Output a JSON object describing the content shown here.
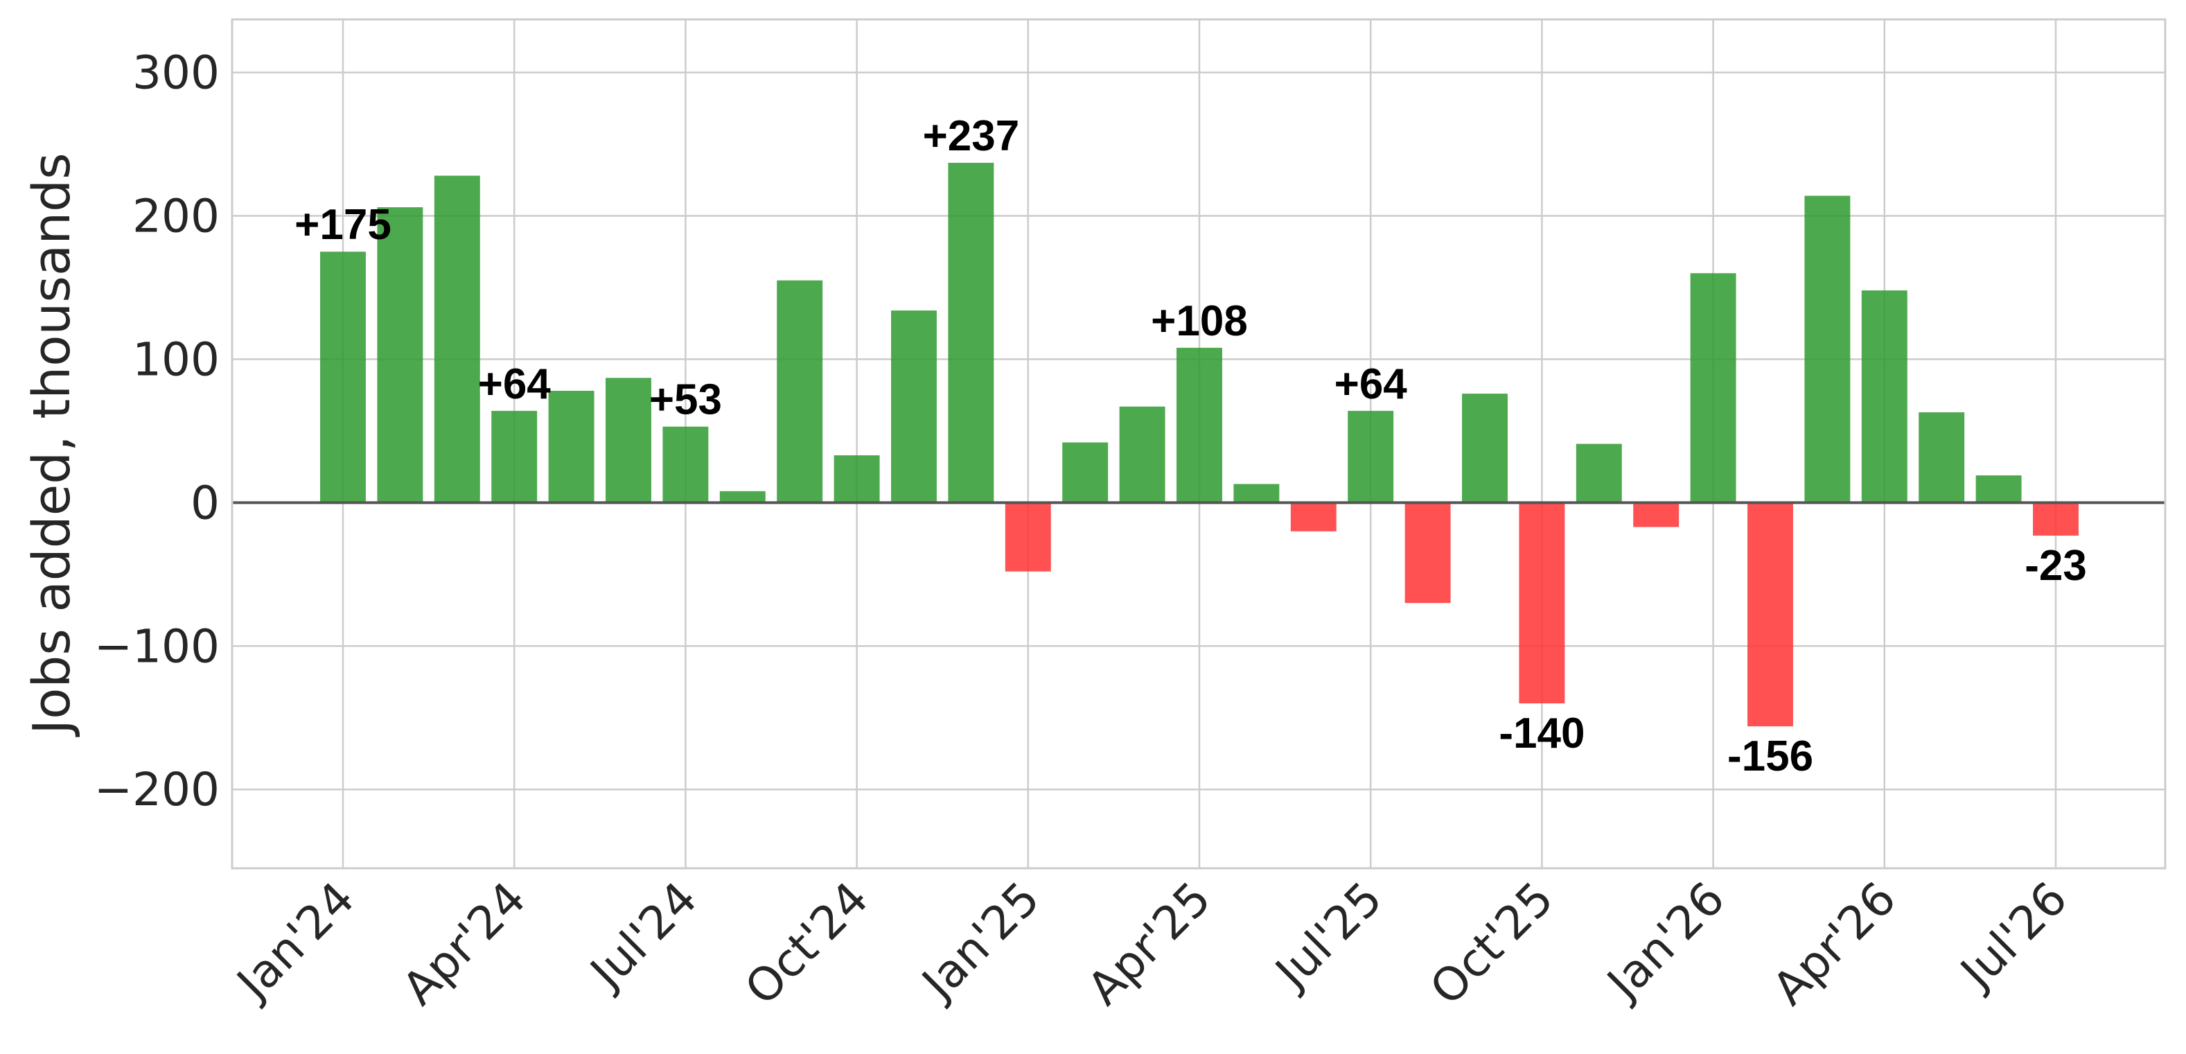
{
  "chart_data": {
    "type": "bar",
    "title": "",
    "xlabel": "",
    "ylabel": "Jobs added, thousands",
    "ylim": [
      -255,
      337
    ],
    "yticks": [
      -200,
      -100,
      0,
      100,
      200,
      300
    ],
    "ytick_labels": [
      "−200",
      "−100",
      "0",
      "100",
      "200",
      "300"
    ],
    "x": [
      "2024-01",
      "2024-02",
      "2024-03",
      "2024-04",
      "2024-05",
      "2024-06",
      "2024-07",
      "2024-08",
      "2024-09",
      "2024-10",
      "2024-11",
      "2024-12",
      "2025-01",
      "2025-02",
      "2025-03",
      "2025-04",
      "2025-05",
      "2025-06",
      "2025-07",
      "2025-08",
      "2025-09",
      "2025-10",
      "2025-11",
      "2025-12",
      "2026-01",
      "2026-02",
      "2026-03",
      "2026-04",
      "2026-05",
      "2026-06",
      "2026-07"
    ],
    "values": [
      175,
      206,
      228,
      64,
      78,
      87,
      53,
      8,
      155,
      33,
      134,
      237,
      -48,
      42,
      67,
      108,
      13,
      -20,
      64,
      -70,
      76,
      -140,
      41,
      -17,
      160,
      -156,
      214,
      148,
      63,
      19,
      -23
    ],
    "xticks": [
      "Jan'24",
      "Apr'24",
      "Jul'24",
      "Oct'24",
      "Jan'25",
      "Apr'25",
      "Jul'25",
      "Oct'25",
      "Jan'26",
      "Apr'26",
      "Jul'26"
    ],
    "annotations": [
      {
        "x": "2024-01",
        "text": "+175"
      },
      {
        "x": "2024-04",
        "text": "+64"
      },
      {
        "x": "2024-07",
        "text": "+53"
      },
      {
        "x": "2024-12",
        "text": "+237"
      },
      {
        "x": "2025-04",
        "text": "+108"
      },
      {
        "x": "2025-07",
        "text": "+64"
      },
      {
        "x": "2025-10",
        "text": "-140"
      },
      {
        "x": "2026-02",
        "text": "-156"
      },
      {
        "x": "2026-07",
        "text": "-23"
      }
    ],
    "colors": {
      "positive": "#2e9a2e",
      "negative": "#ff3333"
    },
    "grid": true,
    "legend": "none"
  }
}
